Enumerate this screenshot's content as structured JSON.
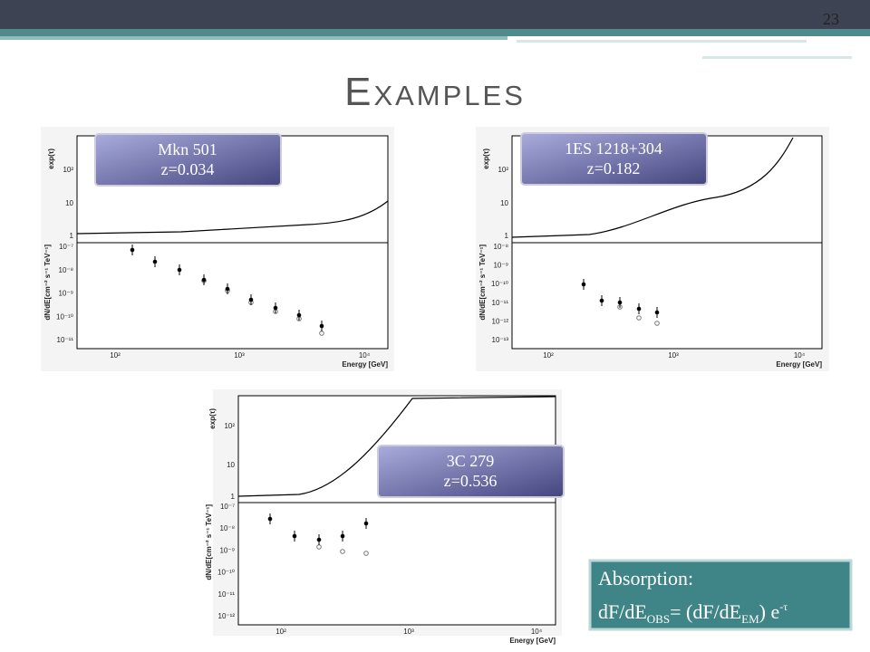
{
  "page_number": "23",
  "title": "Examples",
  "plots": [
    {
      "label": [
        "Mkn 501",
        "z=0.034"
      ],
      "y_label_top": "exp(τ)",
      "y_label_bottom": "dN/dE[cm⁻² s⁻¹ TeV⁻¹]",
      "x_label": "Energy [GeV]",
      "top_ticks": [
        "10²",
        "10",
        "1"
      ],
      "bottom_ticks": [
        "10⁻⁷",
        "10⁻⁸",
        "10⁻⁹",
        "10⁻¹⁰",
        "10⁻¹¹"
      ],
      "x_ticks": [
        "10²",
        "10³",
        "10⁴"
      ]
    },
    {
      "label": [
        "1ES 1218+304",
        "z=0.182"
      ],
      "y_label_top": "exp(τ)",
      "y_label_bottom": "dN/dE[cm⁻² s⁻¹ TeV⁻¹]",
      "x_label": "Energy [GeV]",
      "top_ticks": [
        "10²",
        "10",
        "1"
      ],
      "bottom_ticks": [
        "10⁻⁸",
        "10⁻⁹",
        "10⁻¹⁰",
        "10⁻¹¹",
        "10⁻¹²",
        "10⁻¹³"
      ],
      "x_ticks": [
        "10²",
        "10³",
        "10⁴"
      ]
    },
    {
      "label": [
        "3C 279",
        "z=0.536"
      ],
      "y_label_top": "exp(τ)",
      "y_label_bottom": "dN/dE[cm⁻² s⁻¹ TeV⁻¹]",
      "x_label": "Energy [GeV]",
      "top_ticks": [
        "10²",
        "10",
        "1"
      ],
      "bottom_ticks": [
        "10⁻⁷",
        "10⁻⁸",
        "10⁻⁹",
        "10⁻¹⁰",
        "10⁻¹¹",
        "10⁻¹²"
      ],
      "x_ticks": [
        "10²",
        "10³",
        "10⁴"
      ]
    }
  ],
  "absorption": {
    "heading": "Absorption:",
    "formula": [
      "dF/dE",
      "OBS",
      "= (dF/dE",
      "EM",
      ") e",
      "-τ"
    ]
  }
}
